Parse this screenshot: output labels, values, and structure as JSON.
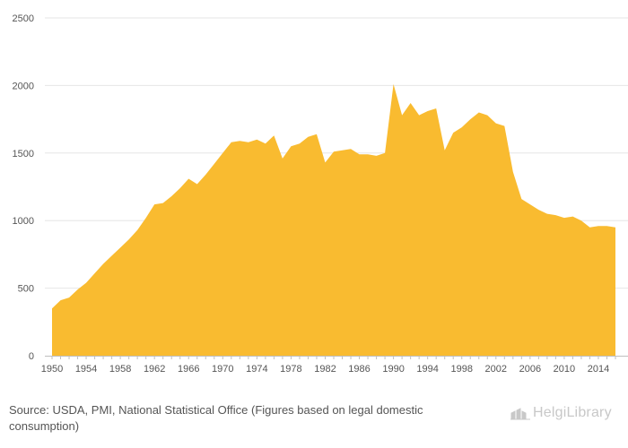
{
  "chart_data": {
    "type": "area",
    "title": "",
    "xlabel": "",
    "ylabel": "",
    "x": [
      1950,
      1951,
      1952,
      1953,
      1954,
      1955,
      1956,
      1957,
      1958,
      1959,
      1960,
      1961,
      1962,
      1963,
      1964,
      1965,
      1966,
      1967,
      1968,
      1969,
      1970,
      1971,
      1972,
      1973,
      1974,
      1975,
      1976,
      1977,
      1978,
      1979,
      1980,
      1981,
      1982,
      1983,
      1984,
      1985,
      1986,
      1987,
      1988,
      1989,
      1990,
      1991,
      1992,
      1993,
      1994,
      1995,
      1996,
      1997,
      1998,
      1999,
      2000,
      2001,
      2002,
      2003,
      2004,
      2005,
      2006,
      2007,
      2008,
      2009,
      2010,
      2011,
      2012,
      2013,
      2014,
      2015,
      2016
    ],
    "values": [
      350,
      410,
      430,
      490,
      540,
      610,
      680,
      740,
      800,
      860,
      930,
      1020,
      1120,
      1130,
      1180,
      1240,
      1310,
      1270,
      1340,
      1420,
      1500,
      1580,
      1590,
      1580,
      1600,
      1570,
      1630,
      1460,
      1550,
      1570,
      1620,
      1640,
      1430,
      1510,
      1520,
      1530,
      1490,
      1490,
      1480,
      1500,
      2010,
      1780,
      1870,
      1780,
      1810,
      1830,
      1520,
      1650,
      1690,
      1750,
      1800,
      1780,
      1720,
      1700,
      1360,
      1160,
      1120,
      1080,
      1050,
      1040,
      1020,
      1030,
      1000,
      950,
      960,
      960,
      950
    ],
    "ylim": [
      0,
      2500
    ],
    "yticks": [
      0,
      500,
      1000,
      1500,
      2000,
      2500
    ],
    "xticks": [
      1950,
      1954,
      1958,
      1962,
      1966,
      1970,
      1974,
      1978,
      1982,
      1986,
      1990,
      1994,
      1998,
      2002,
      2006,
      2010,
      2014
    ],
    "grid": true,
    "fill_color": "#F9BB30",
    "grid_color": "#e6e6e6"
  },
  "source": {
    "label": "Source:",
    "text": "USDA, PMI, National Statistical Office (Figures based on legal domestic consumption)"
  },
  "logo": {
    "text": "HelgiLibrary",
    "icon": "helgi-logo-icon"
  }
}
